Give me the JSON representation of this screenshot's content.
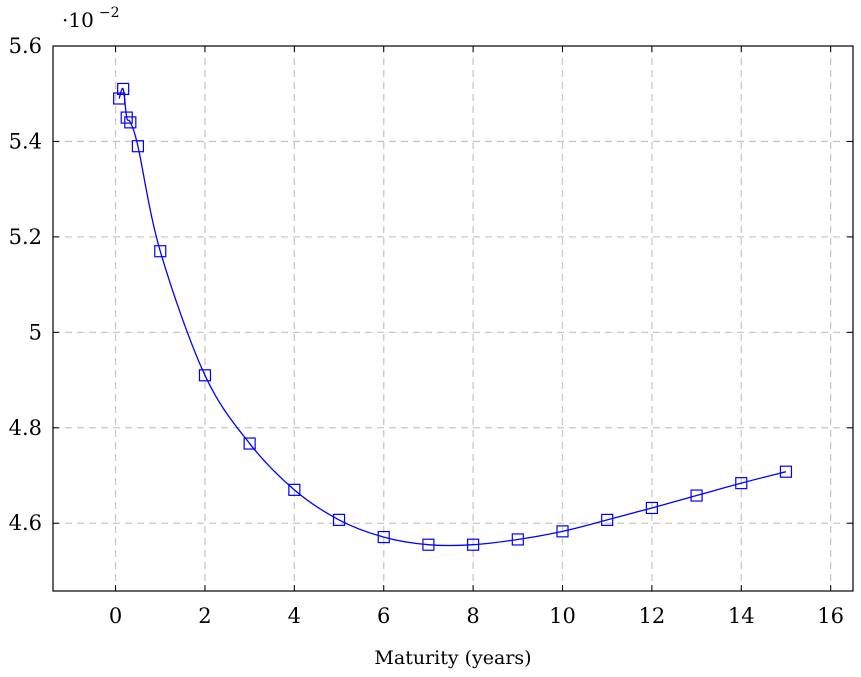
{
  "chart_data": {
    "type": "line",
    "title": "",
    "xlabel": "Maturity (years)",
    "ylabel": "",
    "y_scale_prefix": "·10",
    "y_scale_exponent": "−2",
    "xlim": [
      -1.4,
      16.5
    ],
    "ylim": [
      4.458,
      5.6
    ],
    "x_ticks": [
      0,
      2,
      4,
      6,
      8,
      10,
      12,
      14,
      16
    ],
    "y_ticks": [
      4.6,
      4.8,
      5,
      5.2,
      5.4,
      5.6
    ],
    "x_tick_labels": [
      "0",
      "2",
      "4",
      "6",
      "8",
      "10",
      "12",
      "14",
      "16"
    ],
    "y_tick_labels": [
      "4.6",
      "4.8",
      "5",
      "5.2",
      "5.4",
      "5.6"
    ],
    "grid": true,
    "series": [
      {
        "color": "#0000ff",
        "marker": "square",
        "x": [
          0.08,
          0.17,
          0.25,
          0.33,
          0.5,
          1,
          2,
          3,
          4,
          5,
          6,
          7,
          8,
          9,
          10,
          11,
          12,
          13,
          14,
          15
        ],
        "y": [
          5.49,
          5.51,
          5.45,
          5.44,
          5.39,
          5.17,
          4.91,
          4.767,
          4.67,
          4.607,
          4.571,
          4.555,
          4.555,
          4.566,
          4.583,
          4.607,
          4.632,
          4.658,
          4.684,
          4.708
        ]
      }
    ]
  }
}
